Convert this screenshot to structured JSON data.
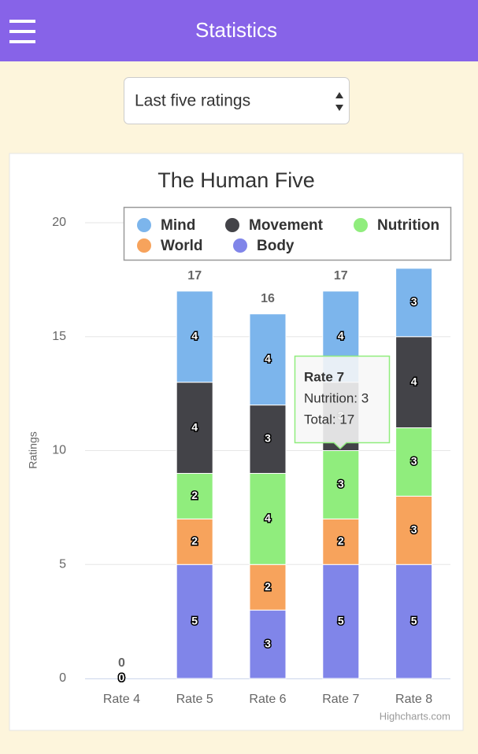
{
  "header": {
    "title": "Statistics"
  },
  "select": {
    "value": "Last five ratings"
  },
  "chart_data": {
    "type": "stacked-bar",
    "title": "The Human Five",
    "y_label": "Ratings",
    "categories": [
      "Rate 4",
      "Rate 5",
      "Rate 6",
      "Rate 7",
      "Rate 8"
    ],
    "series": [
      {
        "name": "Mind",
        "color": "#7cb5ec",
        "values": [
          0,
          4,
          4,
          4,
          3
        ]
      },
      {
        "name": "Movement",
        "color": "#434348",
        "values": [
          0,
          4,
          3,
          3,
          4
        ]
      },
      {
        "name": "Nutrition",
        "color": "#90ed7d",
        "values": [
          0,
          2,
          4,
          3,
          3
        ]
      },
      {
        "name": "World",
        "color": "#f7a35c",
        "values": [
          0,
          2,
          2,
          2,
          3
        ]
      },
      {
        "name": "Body",
        "color": "#8085e9",
        "values": [
          0,
          5,
          3,
          5,
          5
        ]
      }
    ],
    "stack_totals": [
      0,
      17,
      16,
      17,
      18
    ],
    "ylim": [
      0,
      20
    ],
    "yticks": [
      0,
      5,
      10,
      15,
      20
    ],
    "grid": true,
    "legend": "top-right",
    "tooltip": {
      "title": "Rate 7",
      "lines": [
        "Nutrition: 3",
        "Total: 17"
      ]
    },
    "credits": "Highcharts.com"
  }
}
